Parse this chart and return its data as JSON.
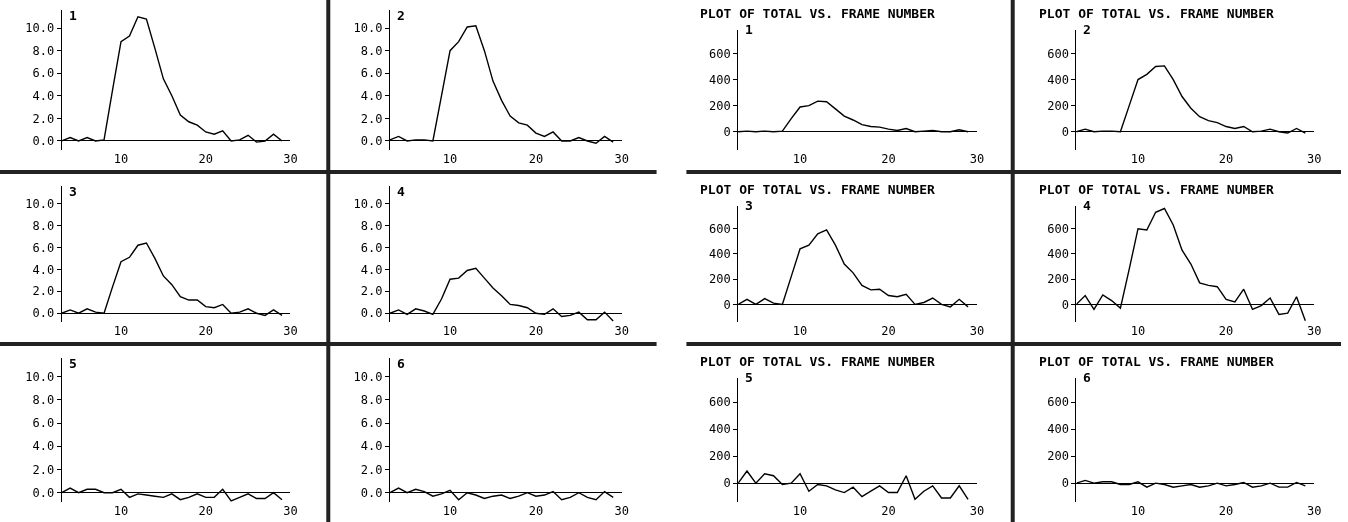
{
  "chart_data": [
    {
      "type": "line",
      "title": "1",
      "x": [
        3,
        4,
        5,
        6,
        7,
        8,
        9,
        10,
        11,
        12,
        13,
        14,
        15,
        16,
        17,
        18,
        19,
        20,
        21,
        22,
        23,
        24,
        25,
        26,
        27,
        28,
        29
      ],
      "series": [
        {
          "color": "#000000",
          "values": [
            0.0,
            0.3,
            0.0,
            0.3,
            0.0,
            0.1,
            4.5,
            8.8,
            9.3,
            11.0,
            10.8,
            8.2,
            5.5,
            4.0,
            2.3,
            1.7,
            1.4,
            0.8,
            0.6,
            0.9,
            0.0,
            0.1,
            0.5,
            -0.1,
            0.0,
            0.6,
            0.0
          ]
        }
      ],
      "xlim": [
        3,
        30
      ],
      "xticks": [
        10,
        20,
        30
      ],
      "ylim": [
        -0.8,
        11.6
      ],
      "yticks": [
        {
          "value": 0,
          "label": "0.0"
        },
        {
          "value": 2,
          "label": "2.0"
        },
        {
          "value": 4,
          "label": "4.0"
        },
        {
          "value": 6,
          "label": "6.0"
        },
        {
          "value": 8,
          "label": "8.0"
        },
        {
          "value": 10,
          "label": "10.0"
        }
      ]
    },
    {
      "type": "line",
      "title": "2",
      "x": [
        3,
        4,
        5,
        6,
        7,
        8,
        9,
        10,
        11,
        12,
        13,
        14,
        15,
        16,
        17,
        18,
        19,
        20,
        21,
        22,
        23,
        24,
        25,
        26,
        27,
        28,
        29
      ],
      "series": [
        {
          "color": "#000000",
          "values": [
            0.1,
            0.4,
            0.0,
            0.1,
            0.1,
            0.0,
            4.0,
            8.0,
            8.8,
            10.1,
            10.2,
            8.0,
            5.3,
            3.6,
            2.2,
            1.6,
            1.4,
            0.7,
            0.4,
            0.8,
            0.0,
            0.0,
            0.3,
            0.0,
            -0.2,
            0.4,
            -0.1
          ]
        }
      ],
      "xlim": [
        3,
        30
      ],
      "xticks": [
        10,
        20,
        30
      ],
      "ylim": [
        -0.8,
        11.6
      ],
      "yticks": [
        {
          "value": 0,
          "label": "0.0"
        },
        {
          "value": 2,
          "label": "2.0"
        },
        {
          "value": 4,
          "label": "4.0"
        },
        {
          "value": 6,
          "label": "6.0"
        },
        {
          "value": 8,
          "label": "8.0"
        },
        {
          "value": 10,
          "label": "10.0"
        }
      ]
    },
    {
      "type": "line",
      "title": "PLOT OF TOTAL VS. FRAME NUMBER",
      "subtitle": "1",
      "x": [
        3,
        4,
        5,
        6,
        7,
        8,
        9,
        10,
        11,
        12,
        13,
        14,
        15,
        16,
        17,
        18,
        19,
        20,
        21,
        22,
        23,
        24,
        25,
        26,
        27,
        28,
        29
      ],
      "series": [
        {
          "color": "#000000",
          "values": [
            0,
            5,
            0,
            5,
            0,
            5,
            100,
            190,
            200,
            235,
            230,
            175,
            120,
            90,
            55,
            40,
            35,
            20,
            10,
            25,
            0,
            5,
            10,
            0,
            0,
            15,
            0
          ]
        }
      ],
      "xlim": [
        3,
        30
      ],
      "xticks": [
        10,
        20,
        30
      ],
      "ylim": [
        -140,
        780
      ],
      "yticks": [
        0,
        200,
        400,
        600
      ]
    },
    {
      "type": "line",
      "title": "PLOT OF TOTAL VS. FRAME NUMBER",
      "subtitle": "2",
      "x": [
        3,
        4,
        5,
        6,
        7,
        8,
        9,
        10,
        11,
        12,
        13,
        14,
        15,
        16,
        17,
        18,
        19,
        20,
        21,
        22,
        23,
        24,
        25,
        26,
        27,
        28,
        29
      ],
      "series": [
        {
          "color": "#000000",
          "values": [
            0,
            20,
            0,
            5,
            5,
            0,
            200,
            400,
            440,
            500,
            505,
            400,
            270,
            180,
            115,
            85,
            70,
            40,
            25,
            40,
            0,
            5,
            20,
            0,
            -10,
            25,
            -10
          ]
        }
      ],
      "xlim": [
        3,
        30
      ],
      "xticks": [
        10,
        20,
        30
      ],
      "ylim": [
        -140,
        780
      ],
      "yticks": [
        0,
        200,
        400,
        600
      ]
    },
    {
      "type": "line",
      "title": "3",
      "x": [
        3,
        4,
        5,
        6,
        7,
        8,
        9,
        10,
        11,
        12,
        13,
        14,
        15,
        16,
        17,
        18,
        19,
        20,
        21,
        22,
        23,
        24,
        25,
        26,
        27,
        28,
        29
      ],
      "series": [
        {
          "color": "#000000",
          "values": [
            0.0,
            0.3,
            0.0,
            0.4,
            0.1,
            0.0,
            2.4,
            4.7,
            5.1,
            6.2,
            6.4,
            5.0,
            3.4,
            2.6,
            1.5,
            1.2,
            1.2,
            0.6,
            0.5,
            0.8,
            0.0,
            0.1,
            0.4,
            0.0,
            -0.2,
            0.3,
            -0.2
          ]
        }
      ],
      "xlim": [
        3,
        30
      ],
      "xticks": [
        10,
        20,
        30
      ],
      "ylim": [
        -0.8,
        11.6
      ],
      "yticks": [
        {
          "value": 0,
          "label": "0.0"
        },
        {
          "value": 2,
          "label": "2.0"
        },
        {
          "value": 4,
          "label": "4.0"
        },
        {
          "value": 6,
          "label": "6.0"
        },
        {
          "value": 8,
          "label": "8.0"
        },
        {
          "value": 10,
          "label": "10.0"
        }
      ]
    },
    {
      "type": "line",
      "title": "4",
      "x": [
        3,
        4,
        5,
        6,
        7,
        8,
        9,
        10,
        11,
        12,
        13,
        14,
        15,
        16,
        17,
        18,
        19,
        20,
        21,
        22,
        23,
        24,
        25,
        26,
        27,
        28,
        29
      ],
      "series": [
        {
          "color": "#000000",
          "values": [
            0.0,
            0.3,
            -0.1,
            0.4,
            0.2,
            -0.1,
            1.3,
            3.1,
            3.2,
            3.9,
            4.1,
            3.2,
            2.3,
            1.6,
            0.8,
            0.7,
            0.5,
            0.0,
            -0.1,
            0.4,
            -0.3,
            -0.2,
            0.1,
            -0.6,
            -0.6,
            0.1,
            -0.7
          ]
        }
      ],
      "xlim": [
        3,
        30
      ],
      "xticks": [
        10,
        20,
        30
      ],
      "ylim": [
        -0.8,
        11.6
      ],
      "yticks": [
        {
          "value": 0,
          "label": "0.0"
        },
        {
          "value": 2,
          "label": "2.0"
        },
        {
          "value": 4,
          "label": "4.0"
        },
        {
          "value": 6,
          "label": "6.0"
        },
        {
          "value": 8,
          "label": "8.0"
        },
        {
          "value": 10,
          "label": "10.0"
        }
      ]
    },
    {
      "type": "line",
      "title": "PLOT OF TOTAL VS. FRAME NUMBER",
      "subtitle": "3",
      "x": [
        3,
        4,
        5,
        6,
        7,
        8,
        9,
        10,
        11,
        12,
        13,
        14,
        15,
        16,
        17,
        18,
        19,
        20,
        21,
        22,
        23,
        24,
        25,
        26,
        27,
        28,
        29
      ],
      "series": [
        {
          "color": "#000000",
          "values": [
            0,
            40,
            0,
            45,
            10,
            0,
            220,
            440,
            470,
            560,
            590,
            470,
            320,
            250,
            150,
            115,
            120,
            70,
            60,
            80,
            0,
            15,
            50,
            0,
            -20,
            40,
            -20
          ]
        }
      ],
      "xlim": [
        3,
        30
      ],
      "xticks": [
        10,
        20,
        30
      ],
      "ylim": [
        -140,
        780
      ],
      "yticks": [
        0,
        200,
        400,
        600
      ]
    },
    {
      "type": "line",
      "title": "PLOT OF TOTAL VS. FRAME NUMBER",
      "subtitle": "4",
      "x": [
        3,
        4,
        5,
        6,
        7,
        8,
        9,
        10,
        11,
        12,
        13,
        14,
        15,
        16,
        17,
        18,
        19,
        20,
        21,
        22,
        23,
        24,
        25,
        26,
        27,
        28,
        29
      ],
      "series": [
        {
          "color": "#000000",
          "values": [
            0,
            70,
            -40,
            75,
            30,
            -30,
            280,
            600,
            590,
            730,
            760,
            630,
            430,
            320,
            170,
            150,
            140,
            40,
            20,
            120,
            -40,
            -10,
            50,
            -80,
            -70,
            60,
            -130
          ]
        }
      ],
      "xlim": [
        3,
        30
      ],
      "xticks": [
        10,
        20,
        30
      ],
      "ylim": [
        -140,
        780
      ],
      "yticks": [
        0,
        200,
        400,
        600
      ]
    },
    {
      "type": "line",
      "title": "5",
      "x": [
        3,
        4,
        5,
        6,
        7,
        8,
        9,
        10,
        11,
        12,
        13,
        14,
        15,
        16,
        17,
        18,
        19,
        20,
        21,
        22,
        23,
        24,
        25,
        26,
        27,
        28,
        29
      ],
      "series": [
        {
          "color": "#000000",
          "values": [
            0.0,
            0.4,
            0.0,
            0.3,
            0.3,
            0.0,
            0.0,
            0.3,
            -0.4,
            -0.1,
            -0.2,
            -0.3,
            -0.4,
            -0.1,
            -0.6,
            -0.4,
            -0.1,
            -0.4,
            -0.4,
            0.3,
            -0.7,
            -0.4,
            -0.1,
            -0.5,
            -0.5,
            0.0,
            -0.6
          ]
        }
      ],
      "xlim": [
        3,
        30
      ],
      "xticks": [
        10,
        20,
        30
      ],
      "ylim": [
        -0.8,
        11.6
      ],
      "yticks": [
        {
          "value": 0,
          "label": "0.0"
        },
        {
          "value": 2,
          "label": "2.0"
        },
        {
          "value": 4,
          "label": "4.0"
        },
        {
          "value": 6,
          "label": "6.0"
        },
        {
          "value": 8,
          "label": "8.0"
        },
        {
          "value": 10,
          "label": "10.0"
        }
      ]
    },
    {
      "type": "line",
      "title": "6",
      "x": [
        3,
        4,
        5,
        6,
        7,
        8,
        9,
        10,
        11,
        12,
        13,
        14,
        15,
        16,
        17,
        18,
        19,
        20,
        21,
        22,
        23,
        24,
        25,
        26,
        27,
        28,
        29
      ],
      "series": [
        {
          "color": "#000000",
          "values": [
            0.0,
            0.4,
            0.0,
            0.3,
            0.1,
            -0.3,
            -0.1,
            0.2,
            -0.6,
            0.0,
            -0.2,
            -0.5,
            -0.3,
            -0.2,
            -0.5,
            -0.3,
            0.0,
            -0.3,
            -0.2,
            0.1,
            -0.6,
            -0.4,
            0.0,
            -0.4,
            -0.6,
            0.1,
            -0.4
          ]
        }
      ],
      "xlim": [
        3,
        30
      ],
      "xticks": [
        10,
        20,
        30
      ],
      "ylim": [
        -0.8,
        11.6
      ],
      "yticks": [
        {
          "value": 0,
          "label": "0.0"
        },
        {
          "value": 2,
          "label": "2.0"
        },
        {
          "value": 4,
          "label": "4.0"
        },
        {
          "value": 6,
          "label": "6.0"
        },
        {
          "value": 8,
          "label": "8.0"
        },
        {
          "value": 10,
          "label": "10.0"
        }
      ]
    },
    {
      "type": "line",
      "title": "PLOT OF TOTAL VS. FRAME NUMBER",
      "subtitle": "5",
      "x": [
        3,
        4,
        5,
        6,
        7,
        8,
        9,
        10,
        11,
        12,
        13,
        14,
        15,
        16,
        17,
        18,
        19,
        20,
        21,
        22,
        23,
        24,
        25,
        26,
        27,
        28,
        29
      ],
      "series": [
        {
          "color": "#000000",
          "values": [
            0,
            90,
            0,
            70,
            55,
            -10,
            0,
            70,
            -60,
            -10,
            -20,
            -50,
            -70,
            -30,
            -100,
            -60,
            -20,
            -70,
            -70,
            55,
            -120,
            -60,
            -20,
            -110,
            -110,
            -20,
            -120
          ]
        }
      ],
      "xlim": [
        3,
        30
      ],
      "xticks": [
        10,
        20,
        30
      ],
      "ylim": [
        -140,
        780
      ],
      "yticks": [
        0,
        200,
        400,
        600
      ]
    },
    {
      "type": "line",
      "title": "PLOT OF TOTAL VS. FRAME NUMBER",
      "subtitle": "6",
      "x": [
        3,
        4,
        5,
        6,
        7,
        8,
        9,
        10,
        11,
        12,
        13,
        14,
        15,
        16,
        17,
        18,
        19,
        20,
        21,
        22,
        23,
        24,
        25,
        26,
        27,
        28,
        29
      ],
      "series": [
        {
          "color": "#000000",
          "values": [
            0,
            20,
            0,
            10,
            10,
            -10,
            -10,
            10,
            -30,
            0,
            -10,
            -30,
            -20,
            -10,
            -30,
            -20,
            0,
            -20,
            -10,
            5,
            -30,
            -20,
            0,
            -30,
            -30,
            5,
            -20
          ]
        }
      ],
      "xlim": [
        3,
        30
      ],
      "xticks": [
        10,
        20,
        30
      ],
      "ylim": [
        -140,
        780
      ],
      "yticks": [
        0,
        200,
        400,
        600
      ]
    }
  ]
}
